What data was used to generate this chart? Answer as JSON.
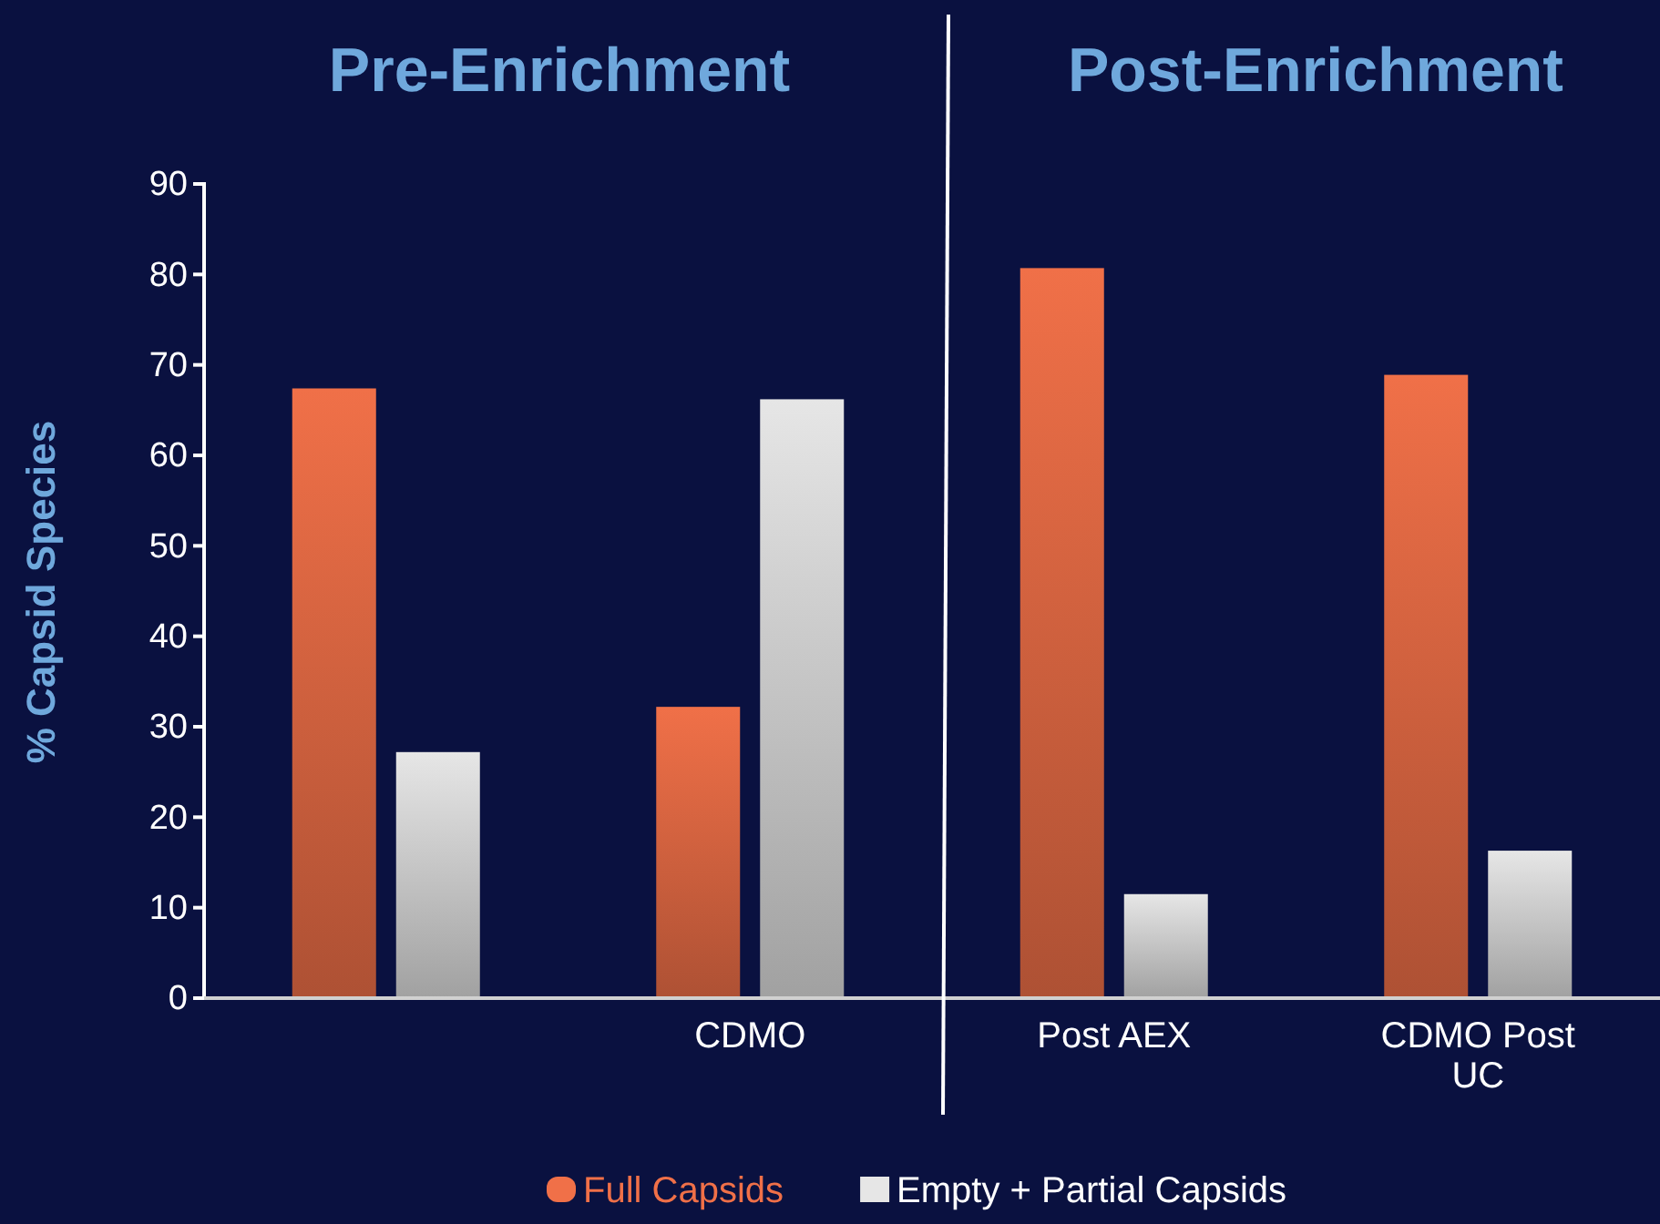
{
  "chart_data": {
    "type": "bar",
    "ylabel": "% Capsid Species",
    "annotations": [
      "Pre-Enrichment",
      "Post-Enrichment"
    ],
    "categories": [
      null,
      "CDMO",
      "Post AEX",
      "CDMO Post UC"
    ],
    "series": [
      {
        "name": "Full Capsids",
        "color": "#f07048",
        "values": [
          67.4,
          32.2,
          80.7,
          68.9
        ]
      },
      {
        "name": "Empty + Partial Capsids",
        "color": "#e6e6e6",
        "values": [
          27.2,
          66.2,
          11.5,
          16.3
        ]
      }
    ],
    "ylim": [
      0,
      90
    ],
    "yticks": [
      0,
      10,
      20,
      30,
      40,
      50,
      60,
      70,
      80,
      90
    ],
    "legend": "bottom"
  }
}
